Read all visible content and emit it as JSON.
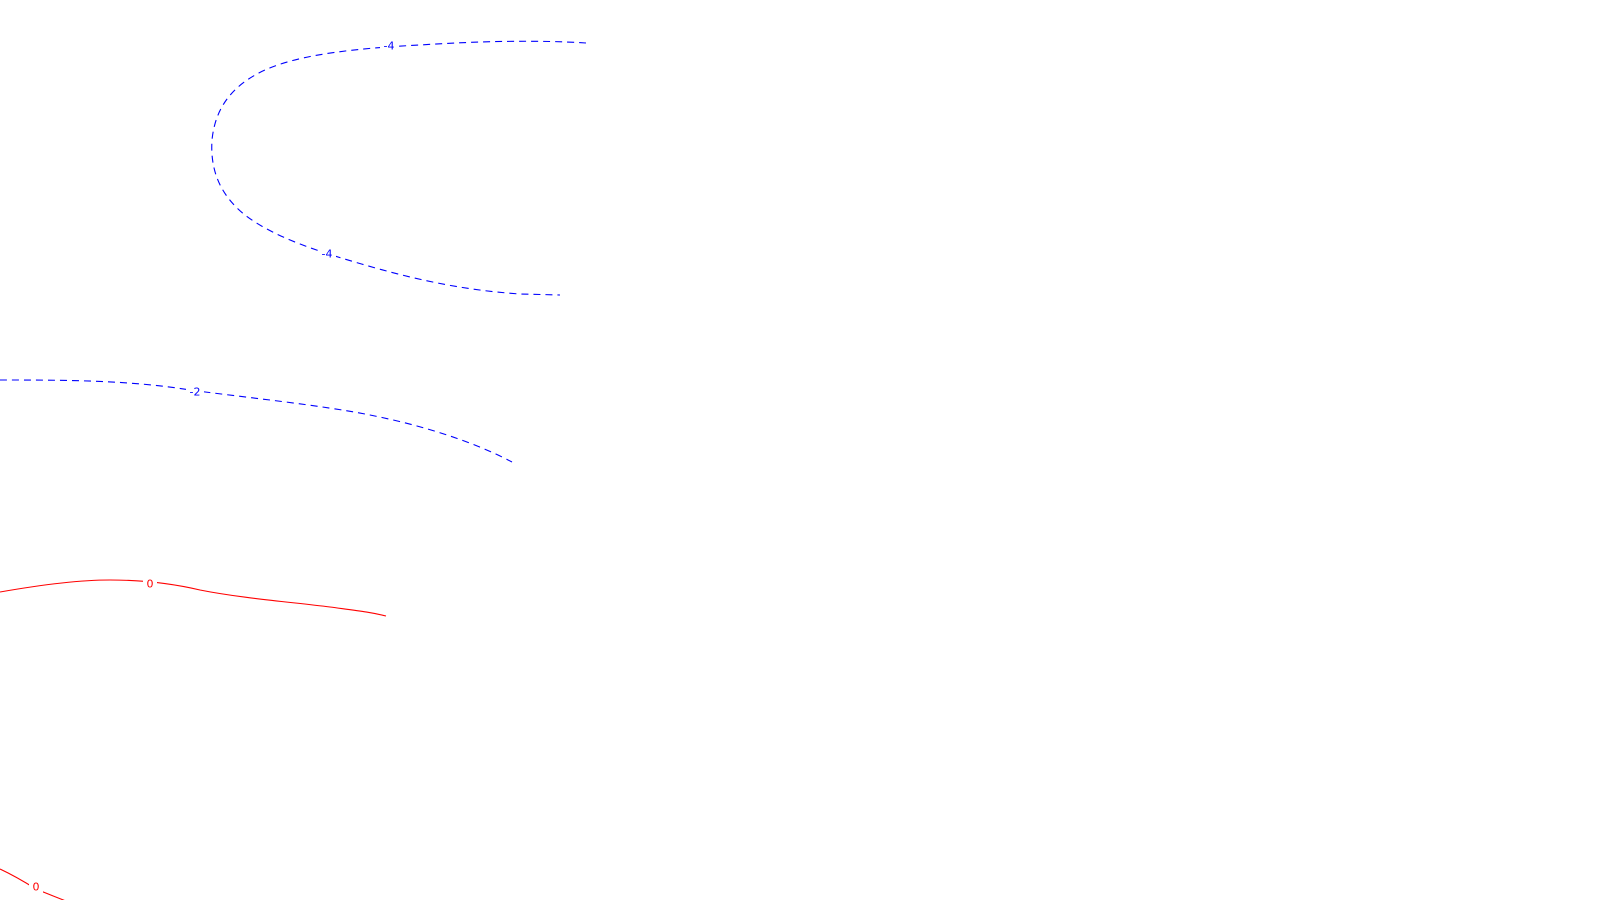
{
  "contours": [
    {
      "level": "-4",
      "color": "#0000ff",
      "style": "dashed",
      "labels": [
        "-4",
        "-4"
      ]
    },
    {
      "level": "-2",
      "color": "#0000ff",
      "style": "dashed",
      "labels": [
        "-2"
      ]
    },
    {
      "level": "0",
      "color": "#ff0000",
      "style": "solid",
      "labels": [
        "0"
      ]
    },
    {
      "level": "0",
      "color": "#ff0000",
      "style": "solid",
      "labels": [
        "0"
      ]
    }
  ]
}
